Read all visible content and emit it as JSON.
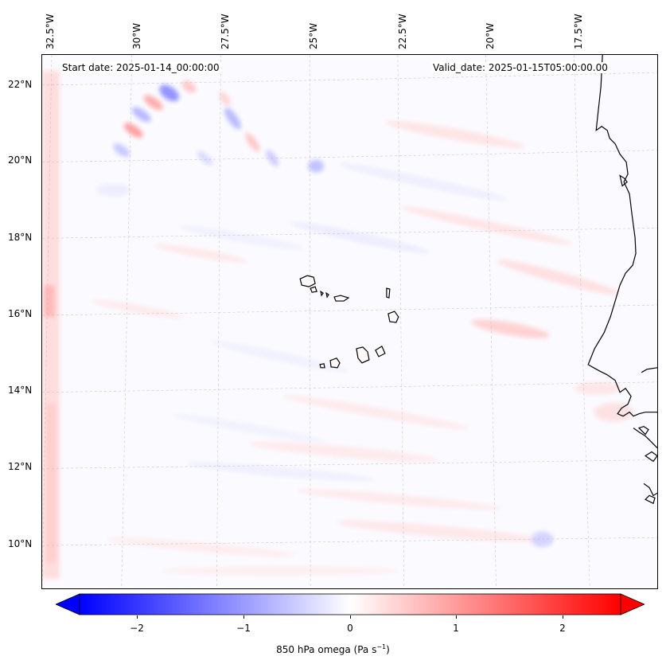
{
  "map": {
    "header": {
      "start_date": "Start date: 2025-01-14_00:00:00",
      "valid_date": "Valid_date: 2025-01-15T05:00:00.00"
    },
    "lon_labels": [
      "32.5°W",
      "30°W",
      "27.5°W",
      "25°W",
      "22.5°W",
      "20°W",
      "17.5°W"
    ],
    "lat_labels": [
      "22°N",
      "20°N",
      "18°N",
      "16°N",
      "14°N",
      "12°N",
      "10°N"
    ],
    "colors": {
      "negative": "#0000ff",
      "neutral": "#ffffff",
      "positive": "#ff0000",
      "coastline": "#000000",
      "gridline": "#c8b4b4"
    }
  },
  "colorbar": {
    "ticks": [
      "−2",
      "−1",
      "0",
      "1",
      "2"
    ],
    "label": "850 hPa omega (Pa s",
    "label_sup": "−1",
    "label_end": ")",
    "range": [
      -2.5,
      2.5
    ]
  }
}
